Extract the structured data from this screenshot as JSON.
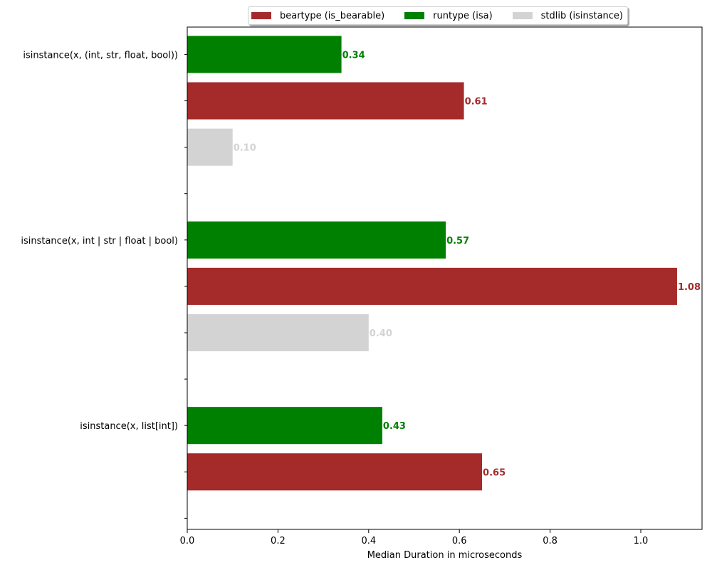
{
  "chart_data": {
    "type": "bar",
    "orientation": "horizontal",
    "categories": [
      "isinstance(x, (int, str, float, bool))",
      "isinstance(x, int | str | float | bool)",
      "isinstance(x, list[int])"
    ],
    "series": [
      {
        "name": "beartype (is_bearable)",
        "color": "#a52a2a",
        "values": [
          0.61,
          1.08,
          0.65
        ]
      },
      {
        "name": "runtype (isa)",
        "color": "#008000",
        "values": [
          0.34,
          0.57,
          0.43
        ]
      },
      {
        "name": "stdlib (isinstance)",
        "color": "#d3d3d3",
        "values": [
          0.1,
          0.4,
          null
        ]
      }
    ],
    "value_labels": [
      [
        "0.61",
        "1.08",
        "0.65"
      ],
      [
        "0.34",
        "0.57",
        "0.43"
      ],
      [
        "0.10",
        "0.40",
        ""
      ]
    ],
    "xlabel": "Median Duration in microseconds",
    "ylabel": "",
    "title": "",
    "xlim": [
      0.0,
      1.135
    ],
    "xticks": [
      0.0,
      0.2,
      0.4,
      0.6,
      0.8,
      1.0
    ],
    "xtick_labels": [
      "0.0",
      "0.2",
      "0.4",
      "0.6",
      "0.8",
      "1.0"
    ],
    "legend": "top-center",
    "grid": false
  }
}
